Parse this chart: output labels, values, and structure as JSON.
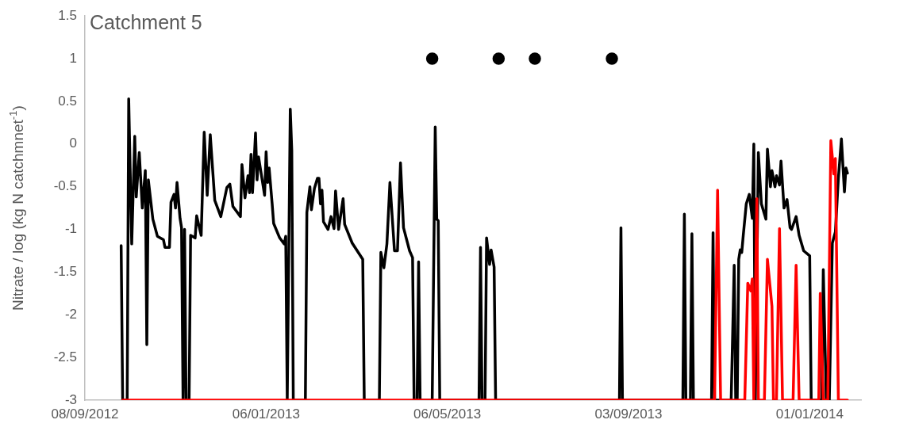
{
  "chart_data": {
    "type": "line",
    "title": "Catchment 5",
    "ylabel": "Nitrate / log (kg N catchmnet$^{-1}$)",
    "xlim": [
      "2012-09-08",
      "2014-02-04"
    ],
    "xticks": [
      {
        "value": "2012-09-08",
        "label": "08/09/2012"
      },
      {
        "value": "2013-01-06",
        "label": "06/01/2013"
      },
      {
        "value": "2013-05-06",
        "label": "06/05/2013"
      },
      {
        "value": "2013-09-03",
        "label": "03/09/2013"
      },
      {
        "value": "2014-01-01",
        "label": "01/01/2014"
      }
    ],
    "ylim": [
      -3,
      1.5
    ],
    "yticks": [
      -3,
      -2.5,
      -2,
      -1.5,
      -1,
      -0.5,
      0,
      0.5,
      1,
      1.5
    ],
    "line_style": "solid",
    "series": [
      {
        "type": "line",
        "color": "#000000",
        "marker": "none",
        "x": [
          "2012-10-02",
          "2012-10-03",
          "2012-10-06",
          "2012-10-07",
          "2012-10-09",
          "2012-10-11",
          "2012-10-12",
          "2012-10-14",
          "2012-10-16",
          "2012-10-18",
          "2012-10-19",
          "2012-10-20",
          "2012-10-23",
          "2012-10-26",
          "2012-10-30",
          "2012-10-31",
          "2012-11-03",
          "2012-11-04",
          "2012-11-06",
          "2012-11-07",
          "2012-11-08",
          "2012-11-10",
          "2012-11-11",
          "2012-11-12",
          "2012-11-13",
          "2012-11-14",
          "2012-11-16",
          "2012-11-17",
          "2012-11-20",
          "2012-11-21",
          "2012-11-24",
          "2012-11-26",
          "2012-11-28",
          "2012-11-30",
          "2012-12-03",
          "2012-12-07",
          "2012-12-11",
          "2012-12-13",
          "2012-12-15",
          "2012-12-20",
          "2012-12-21",
          "2012-12-23",
          "2012-12-25",
          "2012-12-26",
          "2012-12-27",
          "2012-12-28",
          "2012-12-30",
          "2012-12-31",
          "2013-01-01",
          "2013-01-05",
          "2013-01-06",
          "2013-01-07",
          "2013-01-08",
          "2013-01-10",
          "2013-01-11",
          "2013-01-15",
          "2013-01-18",
          "2013-01-19",
          "2013-01-20",
          "2013-01-22",
          "2013-01-23",
          "2013-01-24",
          "2013-02-01",
          "2013-02-02",
          "2013-02-04",
          "2013-02-05",
          "2013-02-07",
          "2013-02-09",
          "2013-02-10",
          "2013-02-11",
          "2013-02-12",
          "2013-02-13",
          "2013-02-16",
          "2013-02-18",
          "2013-02-20",
          "2013-02-21",
          "2013-02-23",
          "2013-02-26",
          "2013-02-27",
          "2013-03-04",
          "2013-03-11",
          "2013-03-12",
          "2013-03-22",
          "2013-03-23",
          "2013-03-25",
          "2013-03-27",
          "2013-03-29",
          "2013-04-01",
          "2013-04-03",
          "2013-04-05",
          "2013-04-07",
          "2013-04-11",
          "2013-04-13",
          "2013-04-14",
          "2013-04-16",
          "2013-04-17",
          "2013-04-18",
          "2013-04-26",
          "2013-04-28",
          "2013-04-29",
          "2013-04-30",
          "2013-05-01",
          "2013-05-27",
          "2013-05-28",
          "2013-05-29",
          "2013-05-31",
          "2013-06-01",
          "2013-06-03",
          "2013-06-04",
          "2013-06-06",
          "2013-06-07",
          "2013-08-28",
          "2013-08-29",
          "2013-08-30",
          "2013-10-09",
          "2013-10-10",
          "2013-10-11",
          "2013-10-14",
          "2013-10-15",
          "2013-10-16",
          "2013-10-28",
          "2013-10-29",
          "2013-10-30",
          "2013-11-10",
          "2013-11-12",
          "2013-11-13",
          "2013-11-14",
          "2013-11-15",
          "2013-11-16",
          "2013-11-17",
          "2013-11-18",
          "2013-11-20",
          "2013-11-22",
          "2013-11-24",
          "2013-11-25",
          "2013-11-26",
          "2013-11-28",
          "2013-11-30",
          "2013-12-03",
          "2013-12-04",
          "2013-12-06",
          "2013-12-07",
          "2013-12-09",
          "2013-12-10",
          "2013-12-12",
          "2013-12-13",
          "2013-12-15",
          "2013-12-17",
          "2013-12-19",
          "2013-12-20",
          "2013-12-23",
          "2013-12-25",
          "2013-12-28",
          "2014-01-01",
          "2014-01-02",
          "2014-01-09",
          "2014-01-10",
          "2014-01-12",
          "2014-01-14",
          "2014-01-16",
          "2014-01-18",
          "2014-01-20",
          "2014-01-22",
          "2014-01-24",
          "2014-01-25",
          "2014-01-26"
        ],
        "values": [
          -1.19,
          -3,
          -3,
          0.53,
          -1.17,
          0.09,
          -0.62,
          -0.1,
          -0.75,
          -0.31,
          -2.35,
          -0.42,
          -0.88,
          -1.08,
          -1.12,
          -1.21,
          -1.21,
          -0.68,
          -0.59,
          -0.75,
          -0.45,
          -0.87,
          -0.98,
          -3,
          -1,
          -3,
          -3,
          -1.07,
          -1.1,
          -0.84,
          -1.07,
          0.14,
          -0.6,
          0.11,
          -0.66,
          -0.85,
          -0.51,
          -0.47,
          -0.73,
          -0.85,
          -0.24,
          -0.63,
          -0.37,
          -0.57,
          -0.12,
          -0.57,
          0.13,
          -0.42,
          -0.15,
          -0.6,
          -0.09,
          -0.45,
          -0.28,
          -0.7,
          -0.93,
          -1.1,
          -1.17,
          -1.08,
          -3,
          0.41,
          -0.08,
          -3,
          -3,
          -0.8,
          -0.5,
          -0.77,
          -0.52,
          -0.4,
          -0.4,
          -0.7,
          -0.54,
          -0.91,
          -1,
          -0.85,
          -0.99,
          -0.55,
          -1,
          -0.64,
          -0.94,
          -1.16,
          -1.35,
          -3,
          -3,
          -1.27,
          -1.45,
          -1.17,
          -0.45,
          -1.25,
          -1.25,
          -0.22,
          -0.98,
          -1.25,
          -1.33,
          -3,
          -3,
          -1.38,
          -3,
          -3,
          0.2,
          -0.88,
          -0.9,
          -3,
          -3,
          -1.21,
          -3,
          -3,
          -1.1,
          -1.41,
          -1.24,
          -1.44,
          -3,
          -3,
          -0.98,
          -3,
          -3,
          -0.82,
          -3,
          -3,
          -1.05,
          -3,
          -3,
          -1.04,
          -3,
          -3,
          -1.42,
          -3,
          -3,
          -1.35,
          -1.24,
          -1.27,
          -1.07,
          -0.7,
          -0.59,
          -0.87,
          0,
          -3,
          -0.1,
          -0.7,
          -0.88,
          -0.06,
          -0.5,
          -0.31,
          -0.5,
          -0.37,
          -0.48,
          -0.2,
          -0.75,
          -0.65,
          -0.98,
          -1,
          -0.85,
          -1.07,
          -1.25,
          -1.31,
          -3,
          -3,
          -1.47,
          -3,
          -3,
          -1.16,
          -1.03,
          -0.4,
          0.06,
          -0.56,
          -0.28,
          -0.34
        ]
      },
      {
        "type": "line",
        "color": "#ff0000",
        "marker": "none",
        "x": [
          "2012-10-03",
          "2013-10-30",
          "2013-11-01",
          "2013-11-03",
          "2013-11-19",
          "2013-11-21",
          "2013-11-23",
          "2013-11-24",
          "2013-11-25",
          "2013-11-27",
          "2013-11-28",
          "2013-12-02",
          "2013-12-04",
          "2013-12-07",
          "2013-12-08",
          "2013-12-10",
          "2013-12-12",
          "2013-12-14",
          "2013-12-21",
          "2013-12-23",
          "2013-12-25",
          "2014-01-07",
          "2014-01-08",
          "2014-01-10",
          "2014-01-13",
          "2014-01-15",
          "2014-01-17",
          "2014-01-18",
          "2014-01-20",
          "2014-01-26"
        ],
        "values": [
          -3,
          -3,
          -0.54,
          -3,
          -3,
          -1.63,
          -1.72,
          -1.58,
          -3,
          -0.64,
          -3,
          -3,
          -1.35,
          -1.9,
          -3,
          -3,
          -0.99,
          -3,
          -3,
          -1.42,
          -3,
          -3,
          -1.75,
          -3,
          -3,
          0.04,
          -0.35,
          -0.17,
          -3,
          -3
        ]
      },
      {
        "type": "scatter",
        "color": "#000000",
        "marker": "circle",
        "x": [
          "2013-04-26",
          "2013-06-09",
          "2013-07-03",
          "2013-08-23"
        ],
        "values": [
          1,
          1,
          1,
          1
        ]
      }
    ]
  }
}
